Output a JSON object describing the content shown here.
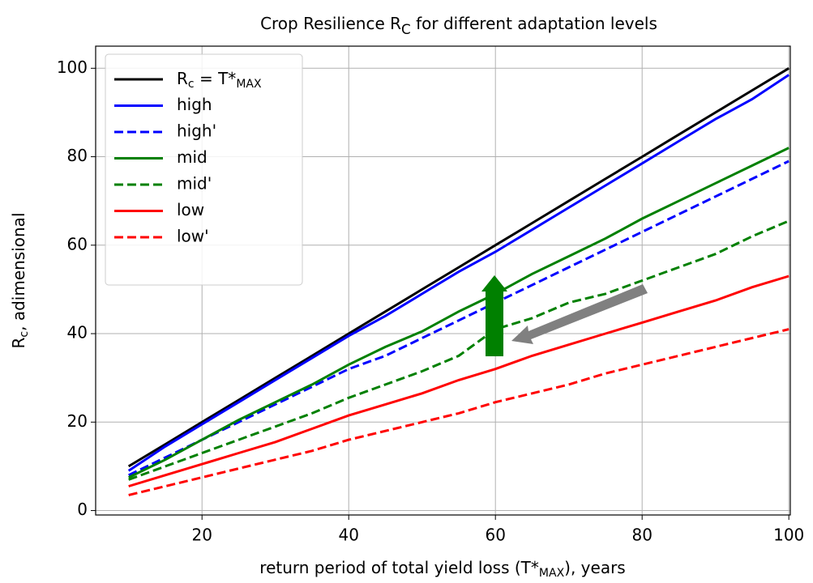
{
  "chart_data": {
    "type": "line",
    "title": [
      "Crop Resilience R",
      "C",
      " for different adaptation levels"
    ],
    "xlabel": [
      "return period of total yield loss (T*",
      "MAX",
      "), years"
    ],
    "ylabel": [
      "R",
      "c",
      ", adimensional"
    ],
    "x": [
      10,
      15,
      20,
      25,
      30,
      35,
      40,
      45,
      50,
      55,
      60,
      65,
      70,
      75,
      80,
      85,
      90,
      95,
      100
    ],
    "series": [
      {
        "name": [
          "R",
          "c",
          " = T*",
          "MAX"
        ],
        "color": "#000000",
        "dash": false,
        "values": [
          10,
          15,
          20,
          25,
          30,
          35,
          40,
          45,
          50,
          55,
          60,
          65,
          70,
          75,
          80,
          85,
          90,
          95,
          100
        ]
      },
      {
        "name": "high",
        "color": "#0000ff",
        "dash": false,
        "values": [
          9,
          14.5,
          19.5,
          24.5,
          29.5,
          34.5,
          39.5,
          44,
          49,
          54,
          58.5,
          63.5,
          68.5,
          73.5,
          78.5,
          83.5,
          88.5,
          93,
          98.5
        ]
      },
      {
        "name": "high'",
        "color": "#0000ff",
        "dash": true,
        "values": [
          8,
          12,
          16,
          20,
          24,
          28,
          32,
          35,
          39,
          43,
          47,
          51,
          55,
          59,
          63,
          67,
          71,
          75,
          79
        ]
      },
      {
        "name": "mid",
        "color": "#008000",
        "dash": false,
        "values": [
          7.5,
          11.5,
          16,
          20.5,
          24.5,
          28.5,
          33,
          37,
          40.5,
          45,
          49,
          53.5,
          57.5,
          61.5,
          66,
          70,
          74,
          78,
          82
        ]
      },
      {
        "name": "mid'",
        "color": "#008000",
        "dash": true,
        "values": [
          7,
          10,
          13,
          16,
          19,
          22,
          25.5,
          28.5,
          31.5,
          35,
          41,
          43.5,
          47,
          49,
          52,
          55,
          58,
          62,
          65.5
        ]
      },
      {
        "name": "low",
        "color": "#ff0000",
        "dash": false,
        "values": [
          5.5,
          8,
          10.5,
          13,
          15.5,
          18.5,
          21.5,
          24,
          26.5,
          29.5,
          32,
          35,
          37.5,
          40,
          42.5,
          45,
          47.5,
          50.5,
          53
        ]
      },
      {
        "name": "low'",
        "color": "#ff0000",
        "dash": true,
        "values": [
          3.5,
          5.5,
          7.5,
          9.5,
          11.5,
          13.5,
          16,
          18,
          20,
          22,
          24.5,
          26.5,
          28.5,
          31,
          33,
          35,
          37,
          39,
          41
        ]
      }
    ],
    "xlim": [
      5.5,
      100.2
    ],
    "ylim": [
      -1,
      105
    ],
    "xticks": [
      20,
      40,
      60,
      80,
      100
    ],
    "yticks": [
      0,
      20,
      40,
      60,
      80,
      100
    ],
    "grid": true,
    "legend": "upper left"
  }
}
